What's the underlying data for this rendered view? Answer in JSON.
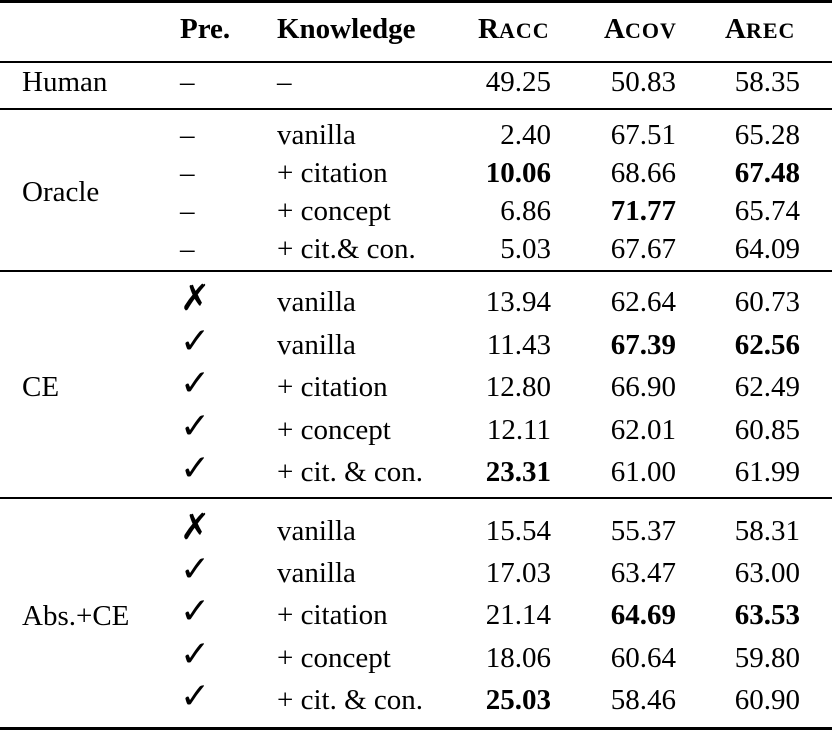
{
  "headers": {
    "pre": "Pre.",
    "knowledge": "Knowledge",
    "racc": {
      "cap": "R",
      "small": "ACC"
    },
    "acov": {
      "cap": "A",
      "small": "COV"
    },
    "arec": {
      "cap": "A",
      "small": "REC"
    }
  },
  "groups": [
    {
      "label": "Human",
      "rows": [
        {
          "pre": "–",
          "knowledge": "–",
          "racc": "49.25",
          "acov": "50.83",
          "arec": "58.35",
          "bold": []
        }
      ]
    },
    {
      "label": "Oracle",
      "rows": [
        {
          "pre": "–",
          "knowledge": "vanilla",
          "racc": "2.40",
          "acov": "67.51",
          "arec": "65.28",
          "bold": []
        },
        {
          "pre": "–",
          "knowledge": "+ citation",
          "racc": "10.06",
          "acov": "68.66",
          "arec": "67.48",
          "bold": [
            "racc",
            "arec"
          ]
        },
        {
          "pre": "–",
          "knowledge": "+ concept",
          "racc": "6.86",
          "acov": "71.77",
          "arec": "65.74",
          "bold": [
            "acov"
          ]
        },
        {
          "pre": "–",
          "knowledge": "+ cit.& con.",
          "racc": "5.03",
          "acov": "67.67",
          "arec": "64.09",
          "bold": []
        }
      ]
    },
    {
      "label": "CE",
      "rows": [
        {
          "pre": "✗",
          "knowledge": "vanilla",
          "racc": "13.94",
          "acov": "62.64",
          "arec": "60.73",
          "bold": []
        },
        {
          "pre": "✓",
          "knowledge": "vanilla",
          "racc": "11.43",
          "acov": "67.39",
          "arec": "62.56",
          "bold": [
            "acov",
            "arec"
          ]
        },
        {
          "pre": "✓",
          "knowledge": "+ citation",
          "racc": "12.80",
          "acov": "66.90",
          "arec": "62.49",
          "bold": []
        },
        {
          "pre": "✓",
          "knowledge": "+ concept",
          "racc": "12.11",
          "acov": "62.01",
          "arec": "60.85",
          "bold": []
        },
        {
          "pre": "✓",
          "knowledge": "+ cit. & con.",
          "racc": "23.31",
          "acov": "61.00",
          "arec": "61.99",
          "bold": [
            "racc"
          ]
        }
      ]
    },
    {
      "label": "Abs.+CE",
      "rows": [
        {
          "pre": "✗",
          "knowledge": "vanilla",
          "racc": "15.54",
          "acov": "55.37",
          "arec": "58.31",
          "bold": []
        },
        {
          "pre": "✓",
          "knowledge": "vanilla",
          "racc": "17.03",
          "acov": "63.47",
          "arec": "63.00",
          "bold": []
        },
        {
          "pre": "✓",
          "knowledge": "+ citation",
          "racc": "21.14",
          "acov": "64.69",
          "arec": "63.53",
          "bold": [
            "acov",
            "arec"
          ]
        },
        {
          "pre": "✓",
          "knowledge": "+ concept",
          "racc": "18.06",
          "acov": "60.64",
          "arec": "59.80",
          "bold": []
        },
        {
          "pre": "✓",
          "knowledge": "+ cit. & con.",
          "racc": "25.03",
          "acov": "58.46",
          "arec": "60.90",
          "bold": [
            "racc"
          ]
        }
      ]
    }
  ]
}
